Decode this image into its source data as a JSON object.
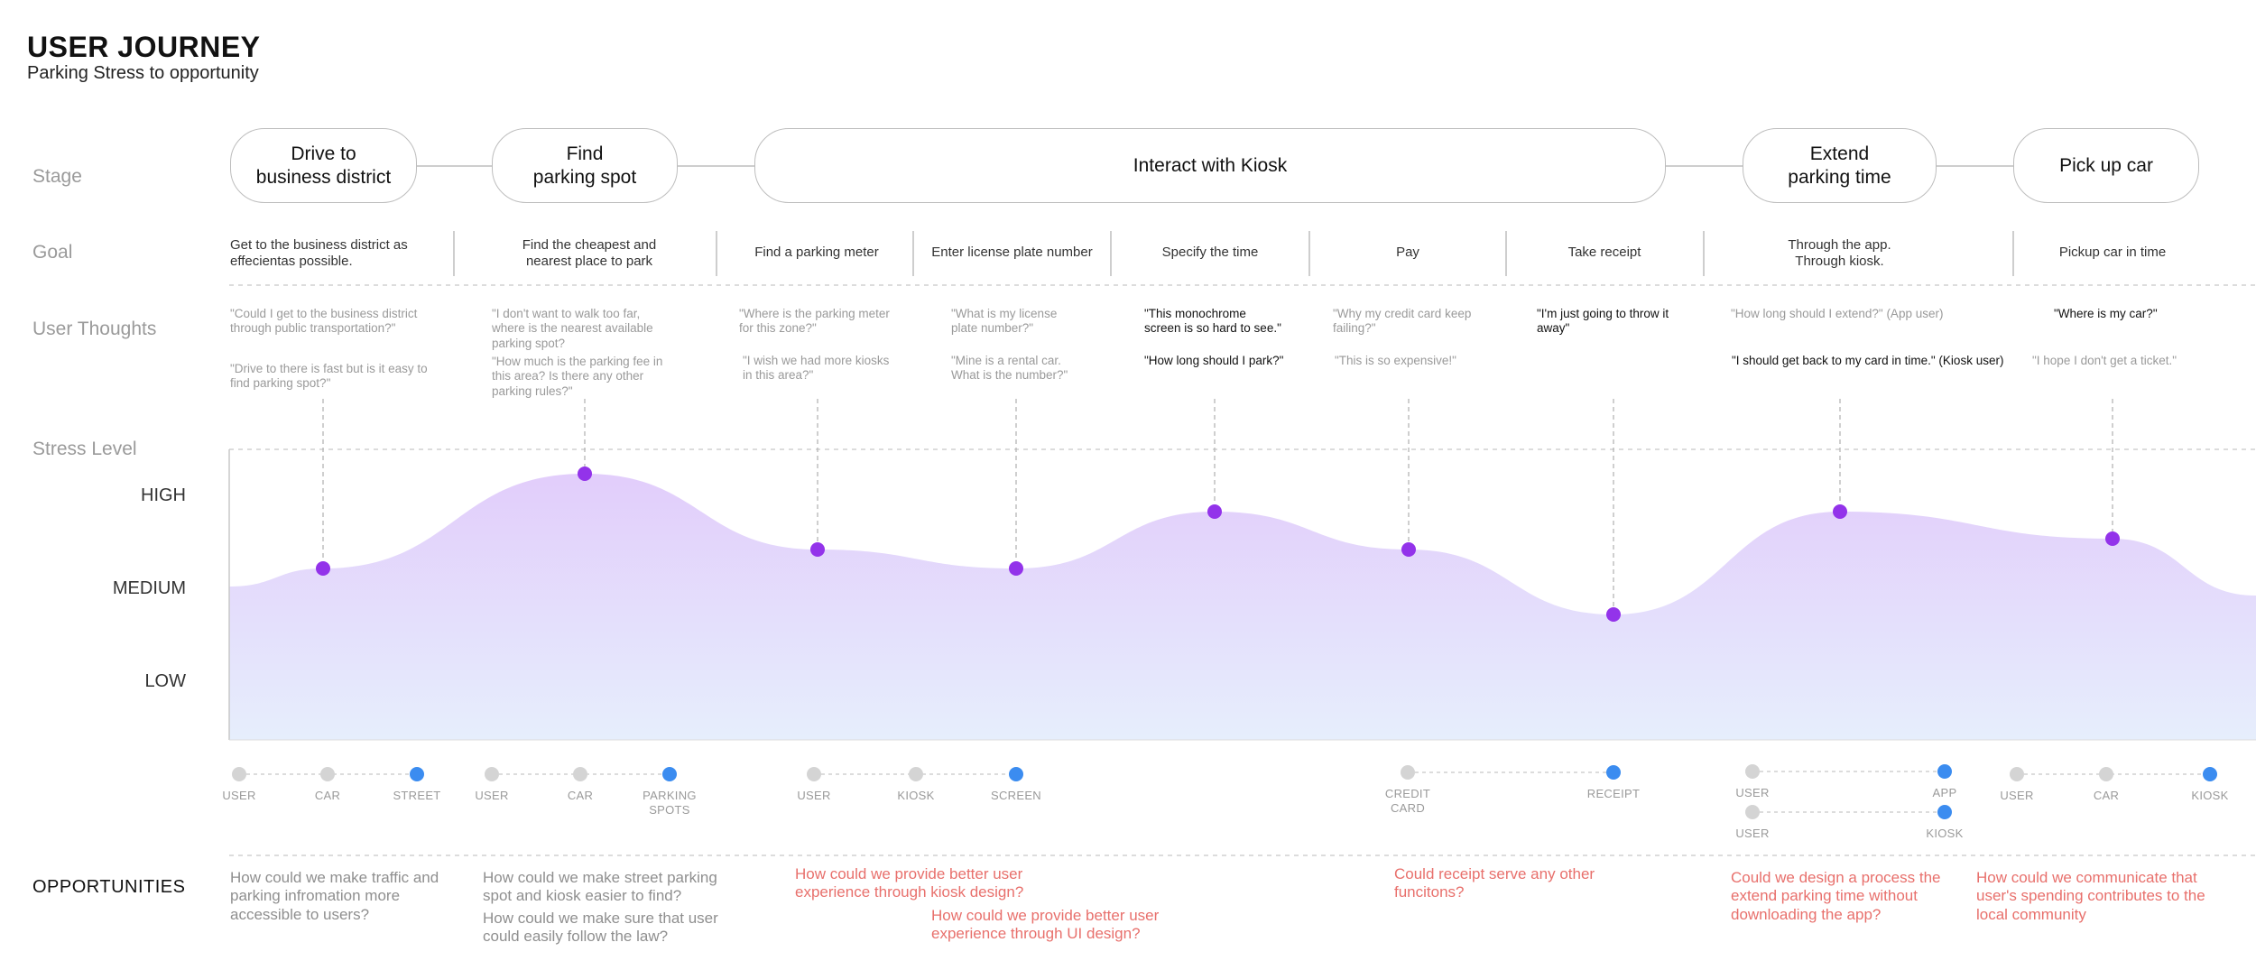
{
  "header": {
    "title": "USER JOURNEY",
    "subtitle": "Parking Stress to opportunity"
  },
  "row_labels": {
    "stage": "Stage",
    "goal": "Goal",
    "thoughts": "User Thoughts",
    "stress": "Stress Level",
    "opportunities": "OPPORTUNITIES"
  },
  "stress_levels": {
    "high": "HIGH",
    "medium": "MEDIUM",
    "low": "LOW"
  },
  "stages": [
    {
      "label": "Drive to\nbusiness district"
    },
    {
      "label": "Find\nparking spot"
    },
    {
      "label": "Interact with Kiosk"
    },
    {
      "label": "Extend\nparking time"
    },
    {
      "label": "Pick up car"
    }
  ],
  "goals": [
    "Get to the business district as\neffecientas possible.",
    "Find the cheapest and\nnearest place to park",
    "Find a parking meter",
    "Enter license plate number",
    "Specify the time",
    "Pay",
    "Take receipt",
    "Through the app.\nThrough kiosk.",
    "Pickup car in time"
  ],
  "thoughts": [
    {
      "text": "\"Could I get to the business district\nthrough public transportation?\"",
      "emphasis": false
    },
    {
      "text": "\"Drive to there is fast but is it easy to\nfind parking spot?\"",
      "emphasis": false
    },
    {
      "text": "\"I don't want to walk too far,\nwhere is the nearest available\nparking spot?",
      "emphasis": false
    },
    {
      "text": "\"How much is the parking fee in\nthis area?  Is there any other\nparking rules?\"",
      "emphasis": false
    },
    {
      "text": "\"Where is the parking meter\nfor this zone?\"",
      "emphasis": false
    },
    {
      "text": "\"I wish we had more kiosks\nin this area?\"",
      "emphasis": false
    },
    {
      "text": "\"What is my license\nplate number?\"",
      "emphasis": false
    },
    {
      "text": "\"Mine is a rental car.\nWhat is the number?\"",
      "emphasis": false
    },
    {
      "text": "\"This monochrome\nscreen is so hard to see.\"",
      "emphasis": true
    },
    {
      "text": "\"How long should I park?\"",
      "emphasis": true
    },
    {
      "text": "\"Why my credit card keep\nfailing?\"",
      "emphasis": false
    },
    {
      "text": "\"This is so expensive!\"",
      "emphasis": false
    },
    {
      "text": "\"I'm just going to throw it\naway\"",
      "emphasis": true
    },
    {
      "text": "\"How long should I extend?\" (App user)",
      "emphasis": false
    },
    {
      "text": "\"I should get back to my card in time.\" (Kiosk user)",
      "emphasis": true
    },
    {
      "text": "\"Where is my car?\"",
      "emphasis": true
    },
    {
      "text": "\"I hope I don't get a ticket.\"",
      "emphasis": false
    }
  ],
  "stress_points": [
    {
      "step": "Drive to business district",
      "level": 0.55
    },
    {
      "step": "Find parking spot",
      "level": 0.9
    },
    {
      "step": "Find a parking meter",
      "level": 0.62
    },
    {
      "step": "Enter license plate number",
      "level": 0.55
    },
    {
      "step": "Specify the time",
      "level": 0.76
    },
    {
      "step": "Pay",
      "level": 0.62
    },
    {
      "step": "Take receipt",
      "level": 0.38
    },
    {
      "step": "Extend parking time",
      "level": 0.76
    },
    {
      "step": "Pick up car",
      "level": 0.66
    }
  ],
  "touchpoint_groups": [
    {
      "labels": [
        "USER",
        "CAR",
        "STREET"
      ],
      "active": [
        false,
        false,
        true
      ]
    },
    {
      "labels": [
        "USER",
        "CAR",
        "PARKING\nSPOTS"
      ],
      "active": [
        false,
        false,
        true
      ]
    },
    {
      "labels": [
        "USER",
        "KIOSK",
        "SCREEN"
      ],
      "active": [
        false,
        false,
        true
      ]
    },
    {
      "labels": [
        "CREDIT\nCARD",
        "RECEIPT"
      ],
      "active": [
        false,
        true
      ]
    },
    {
      "labels": [
        "USER",
        "APP"
      ],
      "active": [
        false,
        true
      ]
    },
    {
      "labels": [
        "USER",
        "KIOSK"
      ],
      "active": [
        false,
        true
      ]
    },
    {
      "labels": [
        "USER",
        "CAR",
        "KIOSK"
      ],
      "active": [
        false,
        false,
        true
      ]
    }
  ],
  "opportunities": [
    {
      "text": "How could we make traffic and\nparking infromation more\naccessible to users?",
      "highlight": false
    },
    {
      "text": "How could we make street parking\nspot and kiosk easier to find?",
      "highlight": false
    },
    {
      "text": "How could we make sure that user\ncould easily follow the law?",
      "highlight": false
    },
    {
      "text": "How could we provide better user\nexperience through kiosk design?",
      "highlight": true
    },
    {
      "text": "How could we provide better user\nexperience through UI design?",
      "highlight": true
    },
    {
      "text": "Could receipt serve any other\nfuncitons?",
      "highlight": true
    },
    {
      "text": "Could we design a process the\nextend parking time without\ndownloading the app?",
      "highlight": true
    },
    {
      "text": "How could we communicate that\nuser's spending contributes to the\nlocal community",
      "highlight": true
    }
  ],
  "colors": {
    "curve_fill_top": "#e2cdfb",
    "curve_fill_bottom": "#e6eefc",
    "stress_point": "#9333ea",
    "touchpoint_active": "#3b8cf0",
    "touchpoint_inactive": "#d4d4d4",
    "opportunity_highlight": "#e8706c"
  }
}
